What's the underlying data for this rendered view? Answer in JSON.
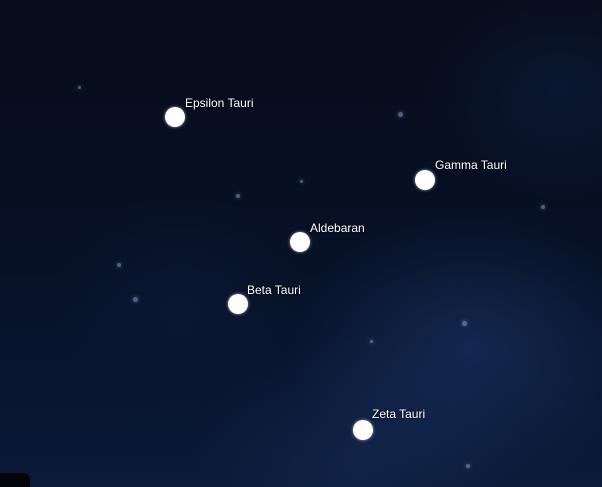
{
  "stars": [
    {
      "name": "Epsilon Tauri"
    },
    {
      "name": "Gamma Tauri"
    },
    {
      "name": "Aldebaran"
    },
    {
      "name": "Beta Tauri"
    },
    {
      "name": "Zeta Tauri"
    }
  ]
}
